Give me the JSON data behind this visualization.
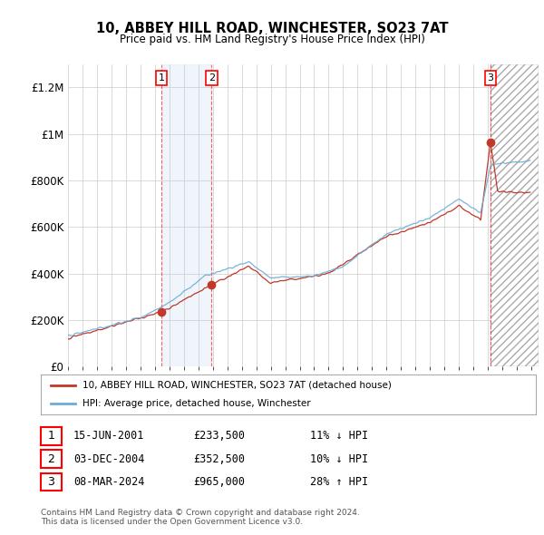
{
  "title": "10, ABBEY HILL ROAD, WINCHESTER, SO23 7AT",
  "subtitle": "Price paid vs. HM Land Registry's House Price Index (HPI)",
  "ylim": [
    0,
    1300000
  ],
  "yticks": [
    0,
    200000,
    400000,
    600000,
    800000,
    1000000,
    1200000
  ],
  "ytick_labels": [
    "£0",
    "£200K",
    "£400K",
    "£600K",
    "£800K",
    "£1M",
    "£1.2M"
  ],
  "x_start_year": 1995,
  "x_end_year": 2027,
  "hpi_color": "#6baed6",
  "price_color": "#c0392b",
  "sale1_date": 2001.45,
  "sale1_price": 233500,
  "sale2_date": 2004.92,
  "sale2_price": 352500,
  "sale3_date": 2024.18,
  "sale3_price": 965000,
  "legend_line1": "10, ABBEY HILL ROAD, WINCHESTER, SO23 7AT (detached house)",
  "legend_line2": "HPI: Average price, detached house, Winchester",
  "table_row1": [
    "1",
    "15-JUN-2001",
    "£233,500",
    "11% ↓ HPI"
  ],
  "table_row2": [
    "2",
    "03-DEC-2004",
    "£352,500",
    "10% ↓ HPI"
  ],
  "table_row3": [
    "3",
    "08-MAR-2024",
    "£965,000",
    "28% ↑ HPI"
  ],
  "footnote": "Contains HM Land Registry data © Crown copyright and database right 2024.\nThis data is licensed under the Open Government Licence v3.0.",
  "bg_color": "#ffffff",
  "grid_color": "#cccccc"
}
